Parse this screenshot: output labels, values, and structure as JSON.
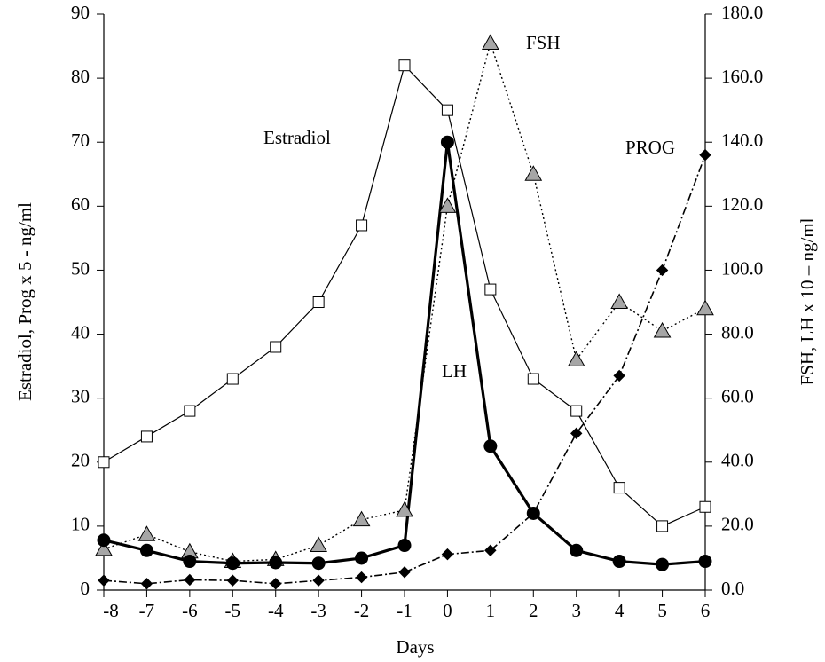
{
  "chart_data": {
    "type": "line",
    "x_label": "Days",
    "y_label": "Estradiol, Prog x 5 - ng/ml",
    "y2_label": "FSH, LH x 10 – ng/ml",
    "x": [
      -8,
      -7,
      -6,
      -5,
      -4,
      -3,
      -2,
      -1,
      0,
      1,
      2,
      3,
      4,
      5,
      6
    ],
    "xlim": [
      -8,
      6
    ],
    "xticks": [
      -8,
      -7,
      -6,
      -5,
      -4,
      -3,
      -2,
      -1,
      0,
      1,
      2,
      3,
      4,
      5,
      6
    ],
    "ylim": [
      0,
      90
    ],
    "yticks": [
      0,
      10,
      20,
      30,
      40,
      50,
      60,
      70,
      80,
      90
    ],
    "y2lim": [
      0,
      180
    ],
    "y2ticks": [
      {
        "value": 0,
        "label": "0.0"
      },
      {
        "value": 20,
        "label": "20.0"
      },
      {
        "value": 40,
        "label": "40.0"
      },
      {
        "value": 60,
        "label": "60.0"
      },
      {
        "value": 80,
        "label": "80.0"
      },
      {
        "value": 100,
        "label": "100.0"
      },
      {
        "value": 120,
        "label": "120.0"
      },
      {
        "value": 140,
        "label": "140.0"
      },
      {
        "value": 160,
        "label": "160.0"
      },
      {
        "value": 180,
        "label": "180.0"
      }
    ],
    "grid": false,
    "annotations": [
      "Estradiol",
      "FSH",
      "PROG",
      "LH"
    ],
    "series": [
      {
        "name": "Estradiol",
        "color": "#000000",
        "marker": "square",
        "marker_fill": "#ffffff",
        "line_style": "solid",
        "values": [
          20,
          24,
          28,
          33,
          38,
          45,
          57,
          82,
          75,
          47,
          33,
          28,
          16,
          10,
          13
        ]
      },
      {
        "name": "FSH",
        "color": "#000000",
        "marker": "triangle",
        "marker_fill": "#a6a6a6",
        "line_style": "dotted",
        "axis": "y2",
        "values": [
          12.8,
          17.4,
          12,
          9,
          9.6,
          14,
          22,
          25,
          120,
          171,
          130,
          72,
          90,
          81,
          88
        ]
      },
      {
        "name": "LH",
        "color": "#000000",
        "marker": "circle",
        "marker_fill": "#000000",
        "line_style": "thick",
        "axis": "y2",
        "values": [
          15.6,
          12.4,
          9,
          8.4,
          8.6,
          8.4,
          10,
          14,
          140,
          45,
          24,
          12.4,
          9,
          8,
          9
        ]
      },
      {
        "name": "PROG",
        "color": "#000000",
        "marker": "diamond",
        "marker_fill": "#000000",
        "line_style": "dashdot",
        "values": [
          1.5,
          1,
          1.6,
          1.5,
          1,
          1.5,
          2,
          2.8,
          5.6,
          6.2,
          12,
          24.5,
          33.5,
          50,
          68
        ]
      }
    ]
  }
}
